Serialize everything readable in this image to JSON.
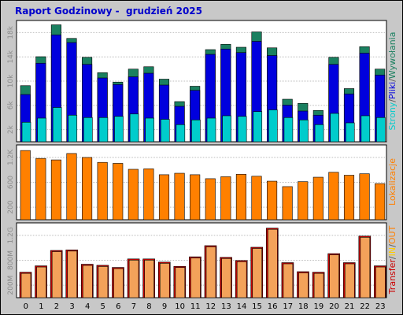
{
  "title": "Raport Godzinowy -  grudzień 2025",
  "colors": {
    "background": "#c8c8c8",
    "panel": "#ffffff",
    "strony": "#00cccc",
    "pliki": "#0000dd",
    "wywolania": "#1a8060",
    "lokalizacje": "#ff8000",
    "transfer": "#cc0000",
    "in": "#ffcc00",
    "out": "#ff8000",
    "transfer_bar": "#f3a25a"
  },
  "chart_data": [
    {
      "type": "bar",
      "panel": "top",
      "categories": [
        "0",
        "1",
        "2",
        "3",
        "4",
        "5",
        "6",
        "7",
        "8",
        "9",
        "10",
        "11",
        "12",
        "13",
        "14",
        "15",
        "16",
        "17",
        "18",
        "19",
        "20",
        "21",
        "22",
        "23"
      ],
      "yticks": [
        "2k",
        "6k",
        "10k",
        "14k",
        "18k"
      ],
      "ylim": [
        0,
        20000
      ],
      "series": [
        {
          "name": "Strony",
          "values": [
            3300,
            4000,
            5800,
            4500,
            4100,
            4100,
            4300,
            4700,
            4000,
            3800,
            2900,
            3700,
            4000,
            4400,
            4300,
            5100,
            5400,
            4100,
            3700,
            2900,
            4800,
            3200,
            4400,
            4100
          ]
        },
        {
          "name": "Pliki",
          "values": [
            8000,
            13300,
            18100,
            16800,
            13100,
            10800,
            9700,
            11000,
            11600,
            9600,
            6000,
            8700,
            14800,
            15700,
            15100,
            17000,
            14600,
            6200,
            5200,
            4500,
            13100,
            8100,
            15000,
            11300
          ]
        },
        {
          "name": "Wywołania",
          "values": [
            9500,
            14400,
            19800,
            17500,
            14300,
            11700,
            10100,
            12300,
            12700,
            10600,
            6800,
            9400,
            15600,
            16500,
            16000,
            18600,
            15900,
            7200,
            6500,
            5300,
            14300,
            9000,
            16100,
            12300
          ]
        }
      ],
      "legend": [
        "Strony",
        "Pliki",
        "Wywołania"
      ]
    },
    {
      "type": "bar",
      "panel": "middle",
      "categories": [
        "0",
        "1",
        "2",
        "3",
        "4",
        "5",
        "6",
        "7",
        "8",
        "9",
        "10",
        "11",
        "12",
        "13",
        "14",
        "15",
        "16",
        "17",
        "18",
        "19",
        "20",
        "21",
        "22",
        "23"
      ],
      "yticks": [
        "200",
        "600",
        "1.2K"
      ],
      "ylim": [
        0,
        1450
      ],
      "series": [
        {
          "name": "Lokalizacje",
          "values": [
            1400,
            1240,
            1210,
            1340,
            1260,
            1160,
            1140,
            1020,
            1030,
            910,
            940,
            910,
            830,
            870,
            920,
            880,
            780,
            670,
            770,
            860,
            960,
            900,
            930,
            730
          ]
        }
      ],
      "legend": [
        "Lokalizacje"
      ]
    },
    {
      "type": "bar",
      "panel": "bottom",
      "categories": [
        "0",
        "1",
        "2",
        "3",
        "4",
        "5",
        "6",
        "7",
        "8",
        "9",
        "10",
        "11",
        "12",
        "13",
        "14",
        "15",
        "16",
        "17",
        "18",
        "19",
        "20",
        "21",
        "22",
        "23"
      ],
      "yticks": [
        "200M",
        "800M",
        "1.2G"
      ],
      "ylim": [
        0,
        1350
      ],
      "series": [
        {
          "name": "Transfer",
          "values": [
            480,
            600,
            890,
            900,
            630,
            610,
            570,
            730,
            730,
            670,
            590,
            770,
            980,
            760,
            700,
            950,
            1310,
            660,
            490,
            480,
            830,
            660,
            1160,
            600
          ]
        }
      ],
      "legend": [
        "Transfer",
        "IN",
        "OUT"
      ]
    }
  ],
  "legend_labels": {
    "top": [
      "Strony",
      "Pliki",
      "Wywołania"
    ],
    "middle": [
      "Lokalizacje"
    ],
    "bottom": [
      "Transfer",
      "IN",
      "OUT"
    ]
  }
}
